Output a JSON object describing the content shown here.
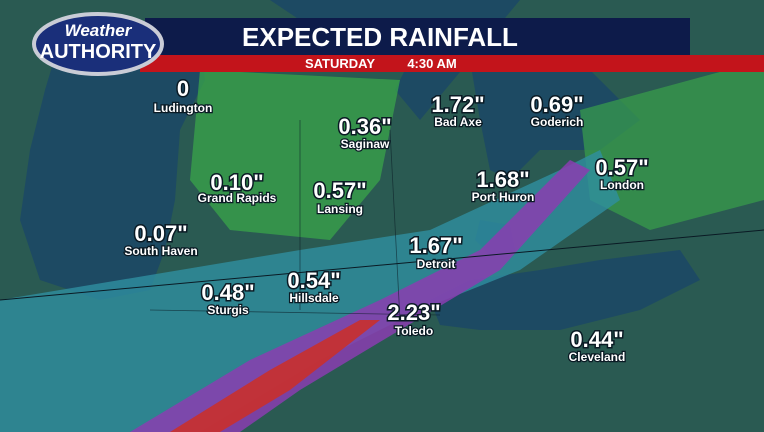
{
  "logo": {
    "top": "Weather",
    "bottom": "AUTHORITY"
  },
  "header": {
    "title": "EXPECTED RAINFALL",
    "day": "SATURDAY",
    "time": "4:30 AM"
  },
  "cities": [
    {
      "amount": "0",
      "name": "Ludington"
    },
    {
      "amount": "0.36\"",
      "name": "Saginaw"
    },
    {
      "amount": "1.72\"",
      "name": "Bad Axe"
    },
    {
      "amount": "0.69\"",
      "name": "Goderich"
    },
    {
      "amount": "0.57\"",
      "name": "London"
    },
    {
      "amount": "0.10\"",
      "name": "Grand Rapids"
    },
    {
      "amount": "0.57\"",
      "name": "Lansing"
    },
    {
      "amount": "1.68\"",
      "name": "Port Huron"
    },
    {
      "amount": "0.07\"",
      "name": "South Haven"
    },
    {
      "amount": "1.67\"",
      "name": "Detroit"
    },
    {
      "amount": "0.54\"",
      "name": "Hillsdale"
    },
    {
      "amount": "0.48\"",
      "name": "Sturgis"
    },
    {
      "amount": "2.23\"",
      "name": "Toledo"
    },
    {
      "amount": "0.44\"",
      "name": "Cleveland"
    }
  ]
}
